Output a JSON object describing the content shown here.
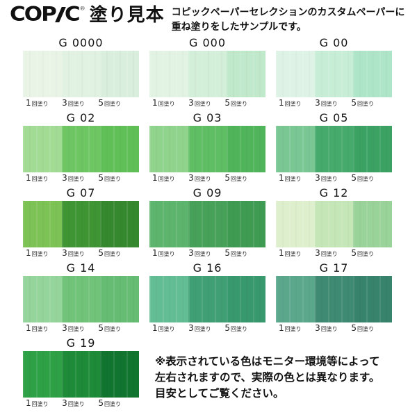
{
  "header": {
    "logo": {
      "prefix": "COP",
      "slash_letter": "I",
      "suffix": "C",
      "registered_mark": "®"
    },
    "title": "塗り見本",
    "description": [
      "コピックペーパーセレクションのカスタムペーパーに",
      "重ね塗りをしたサンプルです。"
    ]
  },
  "coats": [
    {
      "count": "1",
      "suffix": "回塗り"
    },
    {
      "count": "3",
      "suffix": "回塗り"
    },
    {
      "count": "5",
      "suffix": "回塗り"
    }
  ],
  "swatches": [
    {
      "code": "G 0000",
      "colors": [
        "#e9f4e7",
        "#e1f1e2",
        "#daeedd"
      ]
    },
    {
      "code": "G 000",
      "colors": [
        "#e2f3e3",
        "#d3eed9",
        "#c0e8ca"
      ]
    },
    {
      "code": "G 00",
      "colors": [
        "#def3e5",
        "#c7edd7",
        "#aee5c8"
      ]
    },
    {
      "code": "G 02",
      "colors": [
        "#a2db94",
        "#6ec663",
        "#60bf57"
      ]
    },
    {
      "code": "G 03",
      "colors": [
        "#90d38c",
        "#5fbd63",
        "#50b45a"
      ]
    },
    {
      "code": "G 05",
      "colors": [
        "#7bc794",
        "#45aa6c",
        "#3ba264"
      ]
    },
    {
      "code": "G 07",
      "colors": [
        "#7cc254",
        "#3f9434",
        "#36882e"
      ]
    },
    {
      "code": "G 09",
      "colors": [
        "#5db46c",
        "#47a159",
        "#3f9b52"
      ]
    },
    {
      "code": "G 12",
      "colors": [
        "#deefcd",
        "#c5e6b6",
        "#9ad399"
      ]
    },
    {
      "code": "G 14",
      "colors": [
        "#95d49b",
        "#70c379",
        "#65bc72"
      ]
    },
    {
      "code": "G 16",
      "colors": [
        "#63bd94",
        "#409f75",
        "#38986e"
      ]
    },
    {
      "code": "G 17",
      "colors": [
        "#5aa78c",
        "#3e8a72",
        "#37836c"
      ]
    },
    {
      "code": "G 19",
      "colors": [
        "#2ea046",
        "#1d8b38",
        "#117530"
      ]
    }
  ],
  "footnote": {
    "line1": "※表示されている色はモニター環境等によって",
    "line2": "左右されますので、実際の色とは異なります。",
    "line3": "目安としてご覧ください。"
  }
}
